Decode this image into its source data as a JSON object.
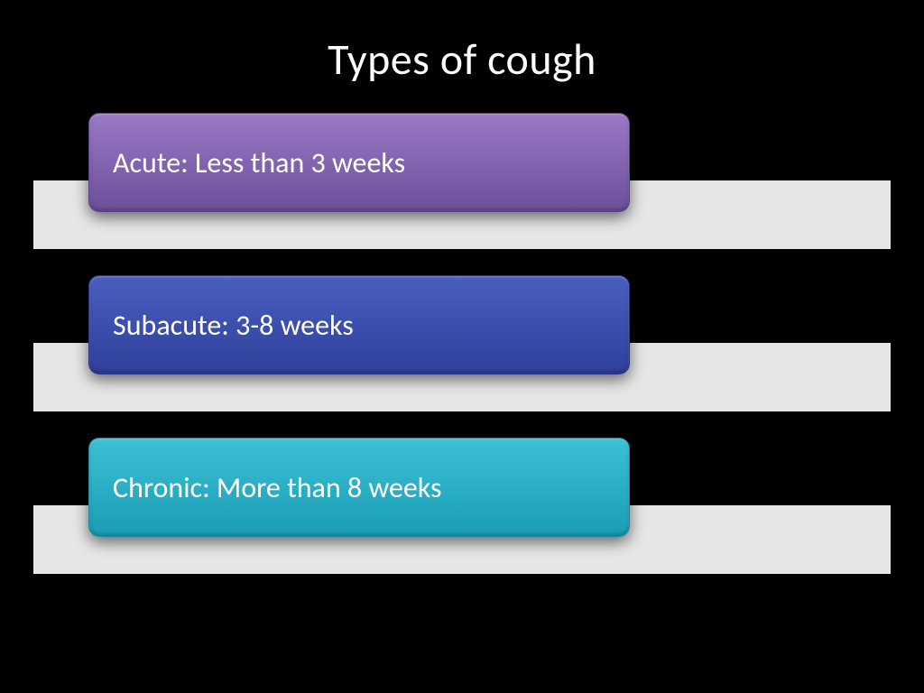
{
  "title": "Types of cough",
  "background_color": "#000000",
  "back_bar_color": "#e6e6e6",
  "title_color": "#ffffff",
  "title_fontsize": 48,
  "label_fontsize": 32,
  "label_color": "#ffffff",
  "pill_width": 600,
  "pill_height": 110,
  "pill_radius": 12,
  "items": [
    {
      "label": "Acute: Less than 3 weeks",
      "gradient_top": "#9a79c5",
      "gradient_bottom": "#6b4f9a",
      "border": "#5a3f85"
    },
    {
      "label": "Subacute: 3-8 weeks",
      "gradient_top": "#4a5fc0",
      "gradient_bottom": "#2f3f9a",
      "border": "#283585"
    },
    {
      "label": "Chronic: More than 8 weeks",
      "gradient_top": "#3bc1d6",
      "gradient_bottom": "#1a9db5",
      "border": "#168aa0"
    }
  ]
}
